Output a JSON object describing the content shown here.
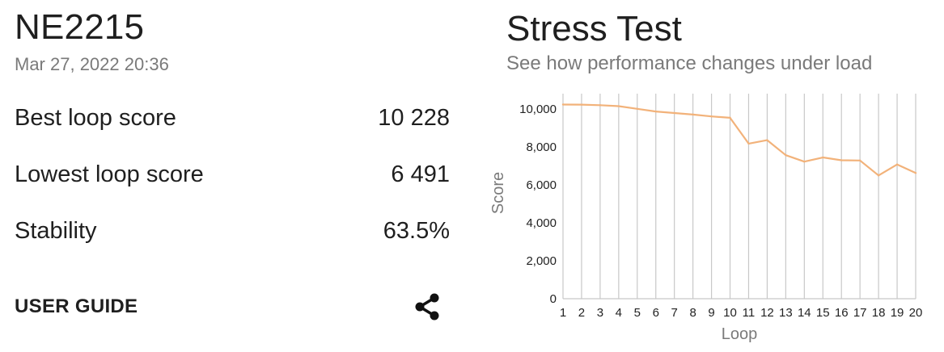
{
  "device": {
    "name": "NE2215",
    "timestamp": "Mar 27, 2022 20:36"
  },
  "stats": {
    "best_label": "Best loop score",
    "best_value": "10 228",
    "lowest_label": "Lowest loop score",
    "lowest_value": "6 491",
    "stability_label": "Stability",
    "stability_value": "63.5%"
  },
  "actions": {
    "user_guide_label": "USER GUIDE",
    "share_icon": "share-icon"
  },
  "chart": {
    "title": "Stress Test",
    "subtitle": "See how performance changes under load"
  },
  "colors": {
    "line": "#f2b27a",
    "grid": "#c8c8c8",
    "text_primary": "#1f1f1f",
    "text_secondary": "#7a7a7a"
  },
  "chart_data": {
    "type": "line",
    "title": "Stress Test",
    "subtitle": "See how performance changes under load",
    "xlabel": "Loop",
    "ylabel": "Score",
    "x": [
      1,
      2,
      3,
      4,
      5,
      6,
      7,
      8,
      9,
      10,
      11,
      12,
      13,
      14,
      15,
      16,
      17,
      18,
      19,
      20
    ],
    "series": [
      {
        "values": [
          10228,
          10220,
          10190,
          10140,
          10000,
          9860,
          9780,
          9700,
          9600,
          9530,
          8170,
          8350,
          7560,
          7220,
          7440,
          7290,
          7280,
          6491,
          7070,
          6620
        ]
      }
    ],
    "ylim": [
      0,
      10800
    ],
    "yticks": [
      0,
      2000,
      4000,
      6000,
      8000,
      10000
    ],
    "ytick_labels": [
      "0",
      "2,000",
      "4,000",
      "6,000",
      "8,000",
      "10,000"
    ],
    "xtick_labels": [
      "1",
      "2",
      "3",
      "4",
      "5",
      "6",
      "7",
      "8",
      "9",
      "10",
      "11",
      "12",
      "13",
      "14",
      "15",
      "16",
      "17",
      "18",
      "19",
      "20"
    ],
    "grid": "vertical",
    "legend": "none"
  }
}
